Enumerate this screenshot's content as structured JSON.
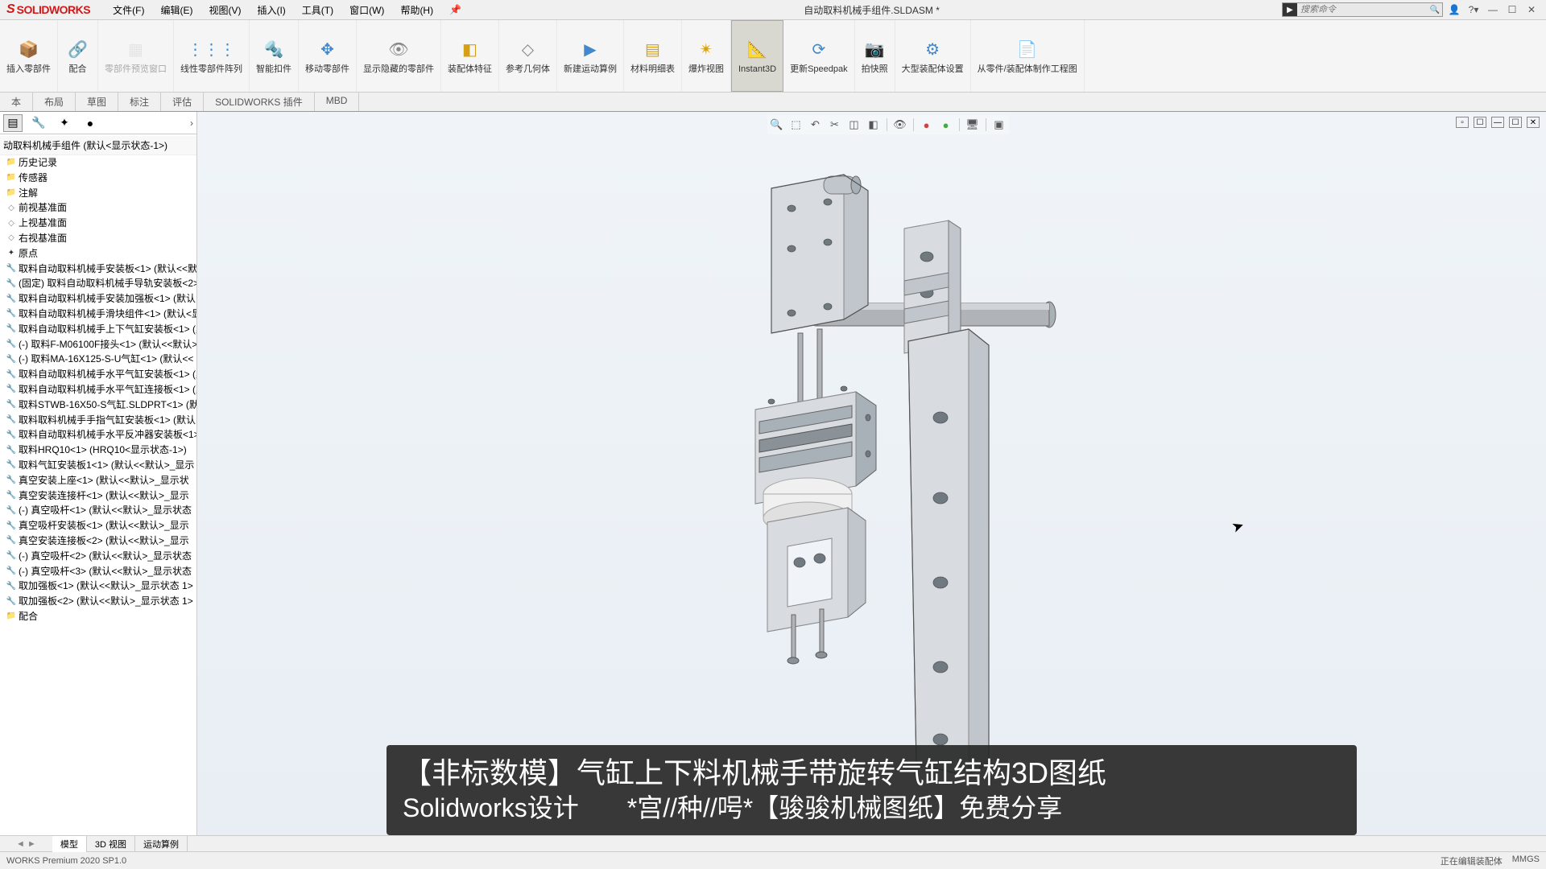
{
  "app": {
    "logo_text": "SOLIDWORKS",
    "document_title": "自动取料机械手组件.SLDASM *",
    "search_placeholder": "搜索命令"
  },
  "menus": [
    {
      "label": "文件(F)"
    },
    {
      "label": "编辑(E)"
    },
    {
      "label": "视图(V)"
    },
    {
      "label": "插入(I)"
    },
    {
      "label": "工具(T)"
    },
    {
      "label": "窗口(W)"
    },
    {
      "label": "帮助(H)"
    }
  ],
  "ribbon": [
    {
      "label": "插入零部件",
      "icon": "📦",
      "color": "#4488cc"
    },
    {
      "label": "配合",
      "icon": "🔗",
      "color": "#888"
    },
    {
      "label": "零部件预览窗口",
      "icon": "▦",
      "color": "#ccc",
      "disabled": true
    },
    {
      "label": "线性零部件阵列",
      "icon": "⋮⋮⋮",
      "color": "#4488cc"
    },
    {
      "label": "智能扣件",
      "icon": "🔩",
      "color": "#d4a017"
    },
    {
      "label": "移动零部件",
      "icon": "✥",
      "color": "#4488cc"
    },
    {
      "label": "显示隐藏的零部件",
      "icon": "👁",
      "color": "#888"
    },
    {
      "label": "装配体特征",
      "icon": "◧",
      "color": "#d4a017"
    },
    {
      "label": "参考几何体",
      "icon": "◇",
      "color": "#888"
    },
    {
      "label": "新建运动算例",
      "icon": "▶",
      "color": "#4488cc"
    },
    {
      "label": "材料明细表",
      "icon": "▤",
      "color": "#d4a017"
    },
    {
      "label": "爆炸视图",
      "icon": "✴",
      "color": "#d4a017"
    },
    {
      "label": "Instant3D",
      "icon": "📐",
      "color": "#d4a017",
      "active": true
    },
    {
      "label": "更新Speedpak",
      "icon": "⟳",
      "color": "#4488cc"
    },
    {
      "label": "拍快照",
      "icon": "📷",
      "color": "#555"
    },
    {
      "label": "大型装配体设置",
      "icon": "⚙",
      "color": "#4488cc"
    },
    {
      "label": "从零件/装配体制作工程图",
      "icon": "📄",
      "color": "#888"
    }
  ],
  "tabs": [
    {
      "label": "本"
    },
    {
      "label": "布局"
    },
    {
      "label": "草图"
    },
    {
      "label": "标注"
    },
    {
      "label": "评估"
    },
    {
      "label": "SOLIDWORKS 插件"
    },
    {
      "label": "MBD"
    }
  ],
  "tree": {
    "header": "动取料机械手组件 (默认<显示状态-1>)",
    "items": [
      {
        "icon": "folder",
        "label": "历史记录"
      },
      {
        "icon": "folder",
        "label": "传感器"
      },
      {
        "icon": "folder",
        "label": "注解"
      },
      {
        "icon": "plane",
        "label": "前视基准面"
      },
      {
        "icon": "plane",
        "label": "上视基准面"
      },
      {
        "icon": "plane",
        "label": "右视基准面"
      },
      {
        "icon": "origin",
        "label": "原点"
      },
      {
        "icon": "part",
        "label": "取料自动取料机械手安装板<1> (默认<<默"
      },
      {
        "icon": "part",
        "label": "(固定) 取料自动取料机械手导轨安装板<2>"
      },
      {
        "icon": "part",
        "label": "取料自动取料机械手安装加强板<1> (默认…"
      },
      {
        "icon": "part",
        "label": "取料自动取料机械手滑块组件<1> (默认<显"
      },
      {
        "icon": "part",
        "label": "取料自动取料机械手上下气缸安装板<1> (默"
      },
      {
        "icon": "part",
        "label": "(-) 取料F-M06100F接头<1> (默认<<默认>"
      },
      {
        "icon": "part",
        "label": "(-) 取料MA-16X125-S-U气缸<1> (默认<<"
      },
      {
        "icon": "part",
        "label": "取料自动取料机械手水平气缸安装板<1> (默"
      },
      {
        "icon": "part",
        "label": "取料自动取料机械手水平气缸连接板<1> (默"
      },
      {
        "icon": "part",
        "label": "取料STWB-16X50-S气缸.SLDPRT<1> (默"
      },
      {
        "icon": "part",
        "label": "取料取料机械手手指气缸安装板<1> (默认…"
      },
      {
        "icon": "part",
        "label": "取料自动取料机械手水平反冲器安装板<1>"
      },
      {
        "icon": "part",
        "label": "取料HRQ10<1> (HRQ10<显示状态-1>)"
      },
      {
        "icon": "part",
        "label": "取料气缸安装板1<1> (默认<<默认>_显示"
      },
      {
        "icon": "part",
        "label": "真空安装上座<1> (默认<<默认>_显示状"
      },
      {
        "icon": "part",
        "label": "真空安装连接杆<1> (默认<<默认>_显示"
      },
      {
        "icon": "part",
        "label": "(-) 真空吸杆<1> (默认<<默认>_显示状态"
      },
      {
        "icon": "part",
        "label": "真空吸杆安装板<1> (默认<<默认>_显示"
      },
      {
        "icon": "part",
        "label": "真空安装连接板<2> (默认<<默认>_显示"
      },
      {
        "icon": "part",
        "label": "(-) 真空吸杆<2> (默认<<默认>_显示状态"
      },
      {
        "icon": "part",
        "label": "(-) 真空吸杆<3> (默认<<默认>_显示状态"
      },
      {
        "icon": "part",
        "label": "取加强板<1> (默认<<默认>_显示状态 1>"
      },
      {
        "icon": "part",
        "label": "取加强板<2> (默认<<默认>_显示状态 1>"
      },
      {
        "icon": "folder",
        "label": "配合"
      }
    ]
  },
  "bottom_tabs": [
    {
      "label": "模型",
      "active": true
    },
    {
      "label": "3D 视图"
    },
    {
      "label": "运动算例"
    }
  ],
  "status": {
    "left": "WORKS Premium 2020 SP1.0",
    "right": [
      "正在编辑装配体",
      "MMGS"
    ]
  },
  "overlay": {
    "line1": "【非标数模】气缸上下料机械手带旋转气缸结构3D图纸",
    "line2a": "Solidworks设计",
    "line2b": "*宫//种//呺*【骏骏机械图纸】免费分享"
  },
  "colors": {
    "accent": "#d01818",
    "viewport_bg_top": "#f0f4f8",
    "viewport_bg_bottom": "#e8eef4"
  }
}
